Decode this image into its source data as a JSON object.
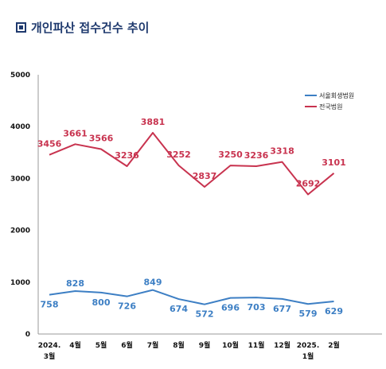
{
  "page": {
    "title": "개인파산 접수건수 추이"
  },
  "chart_data": {
    "type": "line",
    "categories": [
      [
        "2024.",
        "3월"
      ],
      [
        "4월"
      ],
      [
        "5월"
      ],
      [
        "6월"
      ],
      [
        "7월"
      ],
      [
        "8월"
      ],
      [
        "9월"
      ],
      [
        "10월"
      ],
      [
        "11월"
      ],
      [
        "12월"
      ],
      [
        "2025.",
        "1월"
      ],
      [
        "2월"
      ]
    ],
    "series": [
      {
        "name": "서울회생법원",
        "color": "#3d7fc4",
        "values": [
          758,
          828,
          800,
          726,
          849,
          674,
          572,
          696,
          703,
          677,
          579,
          629
        ]
      },
      {
        "name": "전국법원",
        "color": "#c8334f",
        "values": [
          3456,
          3661,
          3566,
          3236,
          3881,
          3252,
          2837,
          3250,
          3236,
          3318,
          2692,
          3101
        ]
      }
    ],
    "yticks": [
      "0",
      "1000",
      "2000",
      "3000",
      "4000",
      "5000"
    ],
    "ylim": [
      0,
      5000
    ],
    "grid": false,
    "legend_position": "top-right"
  }
}
